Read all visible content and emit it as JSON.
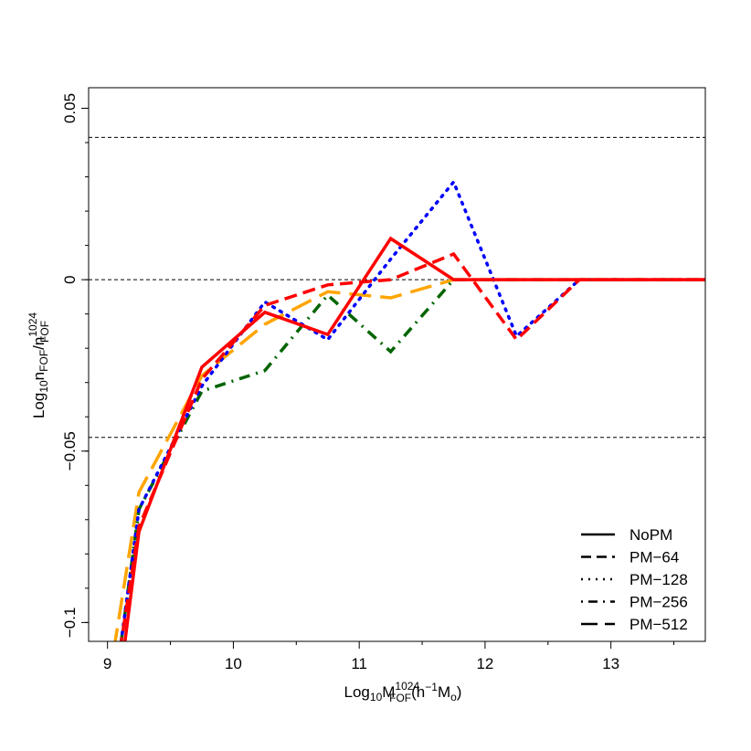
{
  "chart_data": {
    "type": "line",
    "title": "",
    "xlabel": {
      "base": "Log",
      "base_sub": "10",
      "var": "M",
      "var_sub": "FOF",
      "var_sup": "1024",
      "rest": "(h",
      "rest_sup": "−1",
      "rest2": "M",
      "rest2_sub": "o",
      "tail": ")"
    },
    "ylabel": {
      "base": "Log",
      "base_sub": "10",
      "n": "n",
      "n_sub": "FOF",
      "slash": "/n",
      "den_sub": "FOF",
      "den_sup": "1024"
    },
    "xlim": [
      8.85,
      13.75
    ],
    "ylim": [
      -0.1055,
      0.056
    ],
    "x_ticks": [
      {
        "value": 9,
        "label": "9"
      },
      {
        "value": 10,
        "label": "10"
      },
      {
        "value": 11,
        "label": "11"
      },
      {
        "value": 12,
        "label": "12"
      },
      {
        "value": 13,
        "label": "13"
      }
    ],
    "y_ticks": [
      {
        "value": 0.05,
        "label": "0.05"
      },
      {
        "value": 0,
        "label": "0"
      },
      {
        "value": -0.05,
        "label": "−0.05"
      },
      {
        "value": -0.1,
        "label": "−0.1"
      }
    ],
    "reference_lines": [
      0.0415,
      0,
      -0.046
    ],
    "legend_position": "bottom-right",
    "series": [
      {
        "name": "PM−512",
        "color": "#ffa500",
        "dash": "long-dash",
        "x": [
          9.05,
          9.25,
          9.75,
          10.25,
          10.75,
          11.25,
          11.75,
          12.25,
          12.75,
          13.75
        ],
        "y": [
          -0.108,
          -0.062,
          -0.028,
          -0.013,
          -0.0035,
          -0.0053,
          0,
          0,
          0,
          0
        ]
      },
      {
        "name": "PM−256",
        "color": "#006400",
        "dash": "dot-dash",
        "x": [
          9.1,
          9.25,
          9.75,
          10.25,
          10.75,
          11.25,
          11.75,
          12.25,
          12.75,
          13.75
        ],
        "y": [
          -0.108,
          -0.067,
          -0.0325,
          -0.0265,
          -0.0045,
          -0.021,
          0,
          0,
          0,
          0
        ]
      },
      {
        "name": "PM−128",
        "color": "#0000ff",
        "dash": "dotted",
        "x": [
          9.1,
          9.25,
          9.75,
          10.25,
          10.75,
          11.25,
          11.75,
          12.25,
          12.75,
          13.75
        ],
        "y": [
          -0.108,
          -0.067,
          -0.031,
          -0.0065,
          -0.0175,
          0.006,
          0.0285,
          -0.0165,
          0,
          0
        ]
      },
      {
        "name": "PM−64",
        "color": "#ff0000",
        "dash": "dashed",
        "x": [
          9.1,
          9.25,
          9.75,
          10.25,
          10.75,
          11.25,
          11.75,
          12.25,
          12.75,
          13.75
        ],
        "y": [
          -0.108,
          -0.072,
          -0.029,
          -0.0075,
          -0.0015,
          0,
          0.0075,
          -0.0175,
          0,
          0
        ]
      },
      {
        "name": "NoPM",
        "color": "#ff0000",
        "dash": "solid",
        "x": [
          9.13,
          9.25,
          9.75,
          10.25,
          10.75,
          11.25,
          11.75,
          12.25,
          12.75,
          13.75
        ],
        "y": [
          -0.108,
          -0.0735,
          -0.0255,
          -0.0095,
          -0.016,
          0.012,
          0,
          0,
          0,
          0
        ]
      }
    ],
    "legend": [
      {
        "label": "NoPM",
        "dash": "solid"
      },
      {
        "label": "PM−64",
        "dash": "dashed"
      },
      {
        "label": "PM−128",
        "dash": "dotted"
      },
      {
        "label": "PM−256",
        "dash": "dot-dash"
      },
      {
        "label": "PM−512",
        "dash": "long-dash"
      }
    ]
  }
}
